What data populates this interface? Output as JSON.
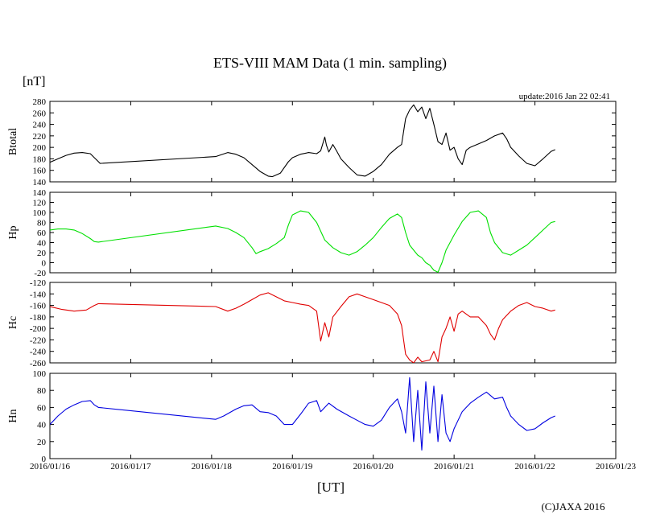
{
  "chart_data": {
    "type": "line",
    "title": "ETS-VIII MAM Data (1 min. sampling)",
    "unit_label": "[nT]",
    "update_text": "update:2016 Jan 22 02:41",
    "xlabel": "[UT]",
    "credit": "(C)JAXA 2016",
    "x_ticks": [
      "2016/01/16",
      "2016/01/17",
      "2016/01/18",
      "2016/01/19",
      "2016/01/20",
      "2016/01/21",
      "2016/01/22",
      "2016/01/23"
    ],
    "x_range_days": [
      0,
      7
    ],
    "panels": [
      {
        "name": "Btotal",
        "color": "#000000",
        "ylim": [
          140,
          280
        ],
        "yticks": [
          "140",
          "160",
          "180",
          "200",
          "220",
          "240",
          "260",
          "280"
        ],
        "points": [
          [
            0,
            174
          ],
          [
            0.1,
            180
          ],
          [
            0.2,
            186
          ],
          [
            0.3,
            190
          ],
          [
            0.4,
            191
          ],
          [
            0.5,
            189
          ],
          [
            0.55,
            182
          ],
          [
            0.6,
            175
          ],
          [
            0.62,
            172
          ],
          [
            2.05,
            184
          ],
          [
            2.2,
            191
          ],
          [
            2.3,
            188
          ],
          [
            2.4,
            182
          ],
          [
            2.5,
            170
          ],
          [
            2.6,
            158
          ],
          [
            2.7,
            150
          ],
          [
            2.75,
            149
          ],
          [
            2.85,
            155
          ],
          [
            2.95,
            175
          ],
          [
            3.0,
            182
          ],
          [
            3.1,
            188
          ],
          [
            3.2,
            191
          ],
          [
            3.3,
            189
          ],
          [
            3.35,
            194
          ],
          [
            3.4,
            218
          ],
          [
            3.42,
            204
          ],
          [
            3.45,
            192
          ],
          [
            3.5,
            205
          ],
          [
            3.55,
            193
          ],
          [
            3.6,
            180
          ],
          [
            3.7,
            165
          ],
          [
            3.8,
            152
          ],
          [
            3.9,
            150
          ],
          [
            4.0,
            158
          ],
          [
            4.1,
            170
          ],
          [
            4.2,
            188
          ],
          [
            4.3,
            200
          ],
          [
            4.35,
            205
          ],
          [
            4.4,
            250
          ],
          [
            4.45,
            265
          ],
          [
            4.5,
            274
          ],
          [
            4.55,
            262
          ],
          [
            4.6,
            270
          ],
          [
            4.65,
            250
          ],
          [
            4.7,
            268
          ],
          [
            4.75,
            240
          ],
          [
            4.8,
            210
          ],
          [
            4.85,
            205
          ],
          [
            4.9,
            225
          ],
          [
            4.95,
            195
          ],
          [
            5.0,
            200
          ],
          [
            5.05,
            180
          ],
          [
            5.1,
            170
          ],
          [
            5.15,
            195
          ],
          [
            5.2,
            200
          ],
          [
            5.3,
            206
          ],
          [
            5.4,
            212
          ],
          [
            5.5,
            220
          ],
          [
            5.6,
            225
          ],
          [
            5.65,
            215
          ],
          [
            5.7,
            200
          ],
          [
            5.8,
            185
          ],
          [
            5.9,
            172
          ],
          [
            6.0,
            168
          ],
          [
            6.1,
            180
          ],
          [
            6.2,
            193
          ],
          [
            6.25,
            196
          ]
        ]
      },
      {
        "name": "Hp",
        "color": "#00e000",
        "ylim": [
          -20,
          140
        ],
        "yticks": [
          "-20",
          "0",
          "20",
          "40",
          "60",
          "80",
          "100",
          "120",
          "140"
        ],
        "points": [
          [
            0,
            65
          ],
          [
            0.1,
            67
          ],
          [
            0.2,
            67
          ],
          [
            0.3,
            65
          ],
          [
            0.4,
            58
          ],
          [
            0.5,
            48
          ],
          [
            0.55,
            42
          ],
          [
            0.6,
            41
          ],
          [
            2.05,
            73
          ],
          [
            2.2,
            68
          ],
          [
            2.3,
            60
          ],
          [
            2.4,
            50
          ],
          [
            2.5,
            30
          ],
          [
            2.55,
            18
          ],
          [
            2.6,
            22
          ],
          [
            2.7,
            28
          ],
          [
            2.8,
            38
          ],
          [
            2.9,
            50
          ],
          [
            2.95,
            75
          ],
          [
            3.0,
            95
          ],
          [
            3.1,
            103
          ],
          [
            3.2,
            100
          ],
          [
            3.3,
            80
          ],
          [
            3.4,
            45
          ],
          [
            3.5,
            30
          ],
          [
            3.6,
            20
          ],
          [
            3.7,
            15
          ],
          [
            3.8,
            22
          ],
          [
            3.9,
            35
          ],
          [
            4.0,
            50
          ],
          [
            4.1,
            70
          ],
          [
            4.2,
            88
          ],
          [
            4.3,
            97
          ],
          [
            4.35,
            90
          ],
          [
            4.4,
            60
          ],
          [
            4.45,
            35
          ],
          [
            4.5,
            25
          ],
          [
            4.55,
            15
          ],
          [
            4.6,
            10
          ],
          [
            4.65,
            0
          ],
          [
            4.7,
            -5
          ],
          [
            4.75,
            -15
          ],
          [
            4.8,
            -19
          ],
          [
            4.85,
            0
          ],
          [
            4.9,
            25
          ],
          [
            5.0,
            55
          ],
          [
            5.1,
            82
          ],
          [
            5.2,
            100
          ],
          [
            5.3,
            103
          ],
          [
            5.4,
            90
          ],
          [
            5.45,
            60
          ],
          [
            5.5,
            40
          ],
          [
            5.6,
            20
          ],
          [
            5.7,
            15
          ],
          [
            5.8,
            25
          ],
          [
            5.9,
            35
          ],
          [
            6.0,
            50
          ],
          [
            6.1,
            65
          ],
          [
            6.2,
            80
          ],
          [
            6.25,
            82
          ]
        ]
      },
      {
        "name": "Hc",
        "color": "#e00000",
        "ylim": [
          -260,
          -120
        ],
        "yticks": [
          "-260",
          "-240",
          "-220",
          "-200",
          "-180",
          "-160",
          "-140",
          "-120"
        ],
        "points": [
          [
            0,
            -162
          ],
          [
            0.15,
            -167
          ],
          [
            0.3,
            -170
          ],
          [
            0.45,
            -168
          ],
          [
            0.55,
            -160
          ],
          [
            0.6,
            -157
          ],
          [
            2.05,
            -162
          ],
          [
            2.2,
            -170
          ],
          [
            2.3,
            -165
          ],
          [
            2.4,
            -158
          ],
          [
            2.5,
            -150
          ],
          [
            2.6,
            -142
          ],
          [
            2.7,
            -138
          ],
          [
            2.8,
            -145
          ],
          [
            2.9,
            -152
          ],
          [
            3.0,
            -155
          ],
          [
            3.1,
            -158
          ],
          [
            3.2,
            -160
          ],
          [
            3.3,
            -170
          ],
          [
            3.35,
            -222
          ],
          [
            3.4,
            -190
          ],
          [
            3.45,
            -215
          ],
          [
            3.5,
            -180
          ],
          [
            3.6,
            -162
          ],
          [
            3.7,
            -145
          ],
          [
            3.8,
            -140
          ],
          [
            3.9,
            -145
          ],
          [
            4.0,
            -150
          ],
          [
            4.1,
            -155
          ],
          [
            4.2,
            -160
          ],
          [
            4.3,
            -175
          ],
          [
            4.35,
            -195
          ],
          [
            4.4,
            -245
          ],
          [
            4.45,
            -255
          ],
          [
            4.5,
            -260
          ],
          [
            4.55,
            -250
          ],
          [
            4.6,
            -258
          ],
          [
            4.7,
            -255
          ],
          [
            4.75,
            -240
          ],
          [
            4.8,
            -258
          ],
          [
            4.85,
            -215
          ],
          [
            4.9,
            -200
          ],
          [
            4.95,
            -180
          ],
          [
            5.0,
            -205
          ],
          [
            5.05,
            -175
          ],
          [
            5.1,
            -170
          ],
          [
            5.2,
            -180
          ],
          [
            5.3,
            -180
          ],
          [
            5.4,
            -195
          ],
          [
            5.45,
            -210
          ],
          [
            5.5,
            -220
          ],
          [
            5.55,
            -200
          ],
          [
            5.6,
            -185
          ],
          [
            5.7,
            -170
          ],
          [
            5.8,
            -160
          ],
          [
            5.9,
            -155
          ],
          [
            6.0,
            -162
          ],
          [
            6.1,
            -165
          ],
          [
            6.2,
            -170
          ],
          [
            6.25,
            -168
          ]
        ]
      },
      {
        "name": "Hn",
        "color": "#0000e0",
        "ylim": [
          0,
          100
        ],
        "yticks": [
          "0",
          "20",
          "40",
          "60",
          "80",
          "100"
        ],
        "points": [
          [
            0,
            40
          ],
          [
            0.1,
            50
          ],
          [
            0.2,
            58
          ],
          [
            0.3,
            63
          ],
          [
            0.4,
            67
          ],
          [
            0.5,
            68
          ],
          [
            0.55,
            63
          ],
          [
            0.6,
            60
          ],
          [
            2.05,
            46
          ],
          [
            2.15,
            50
          ],
          [
            2.3,
            58
          ],
          [
            2.4,
            62
          ],
          [
            2.5,
            63
          ],
          [
            2.6,
            55
          ],
          [
            2.7,
            54
          ],
          [
            2.8,
            50
          ],
          [
            2.9,
            40
          ],
          [
            3.0,
            40
          ],
          [
            3.1,
            52
          ],
          [
            3.2,
            65
          ],
          [
            3.3,
            68
          ],
          [
            3.35,
            55
          ],
          [
            3.45,
            65
          ],
          [
            3.55,
            58
          ],
          [
            3.7,
            50
          ],
          [
            3.8,
            45
          ],
          [
            3.9,
            40
          ],
          [
            4.0,
            38
          ],
          [
            4.1,
            45
          ],
          [
            4.2,
            60
          ],
          [
            4.3,
            70
          ],
          [
            4.35,
            55
          ],
          [
            4.4,
            30
          ],
          [
            4.45,
            95
          ],
          [
            4.5,
            20
          ],
          [
            4.55,
            80
          ],
          [
            4.6,
            10
          ],
          [
            4.65,
            90
          ],
          [
            4.7,
            30
          ],
          [
            4.75,
            85
          ],
          [
            4.8,
            20
          ],
          [
            4.85,
            75
          ],
          [
            4.9,
            30
          ],
          [
            4.95,
            20
          ],
          [
            5.0,
            35
          ],
          [
            5.1,
            55
          ],
          [
            5.2,
            65
          ],
          [
            5.3,
            72
          ],
          [
            5.4,
            78
          ],
          [
            5.5,
            70
          ],
          [
            5.6,
            72
          ],
          [
            5.65,
            60
          ],
          [
            5.7,
            50
          ],
          [
            5.8,
            40
          ],
          [
            5.9,
            33
          ],
          [
            6.0,
            35
          ],
          [
            6.1,
            42
          ],
          [
            6.2,
            48
          ],
          [
            6.25,
            50
          ]
        ]
      }
    ]
  }
}
